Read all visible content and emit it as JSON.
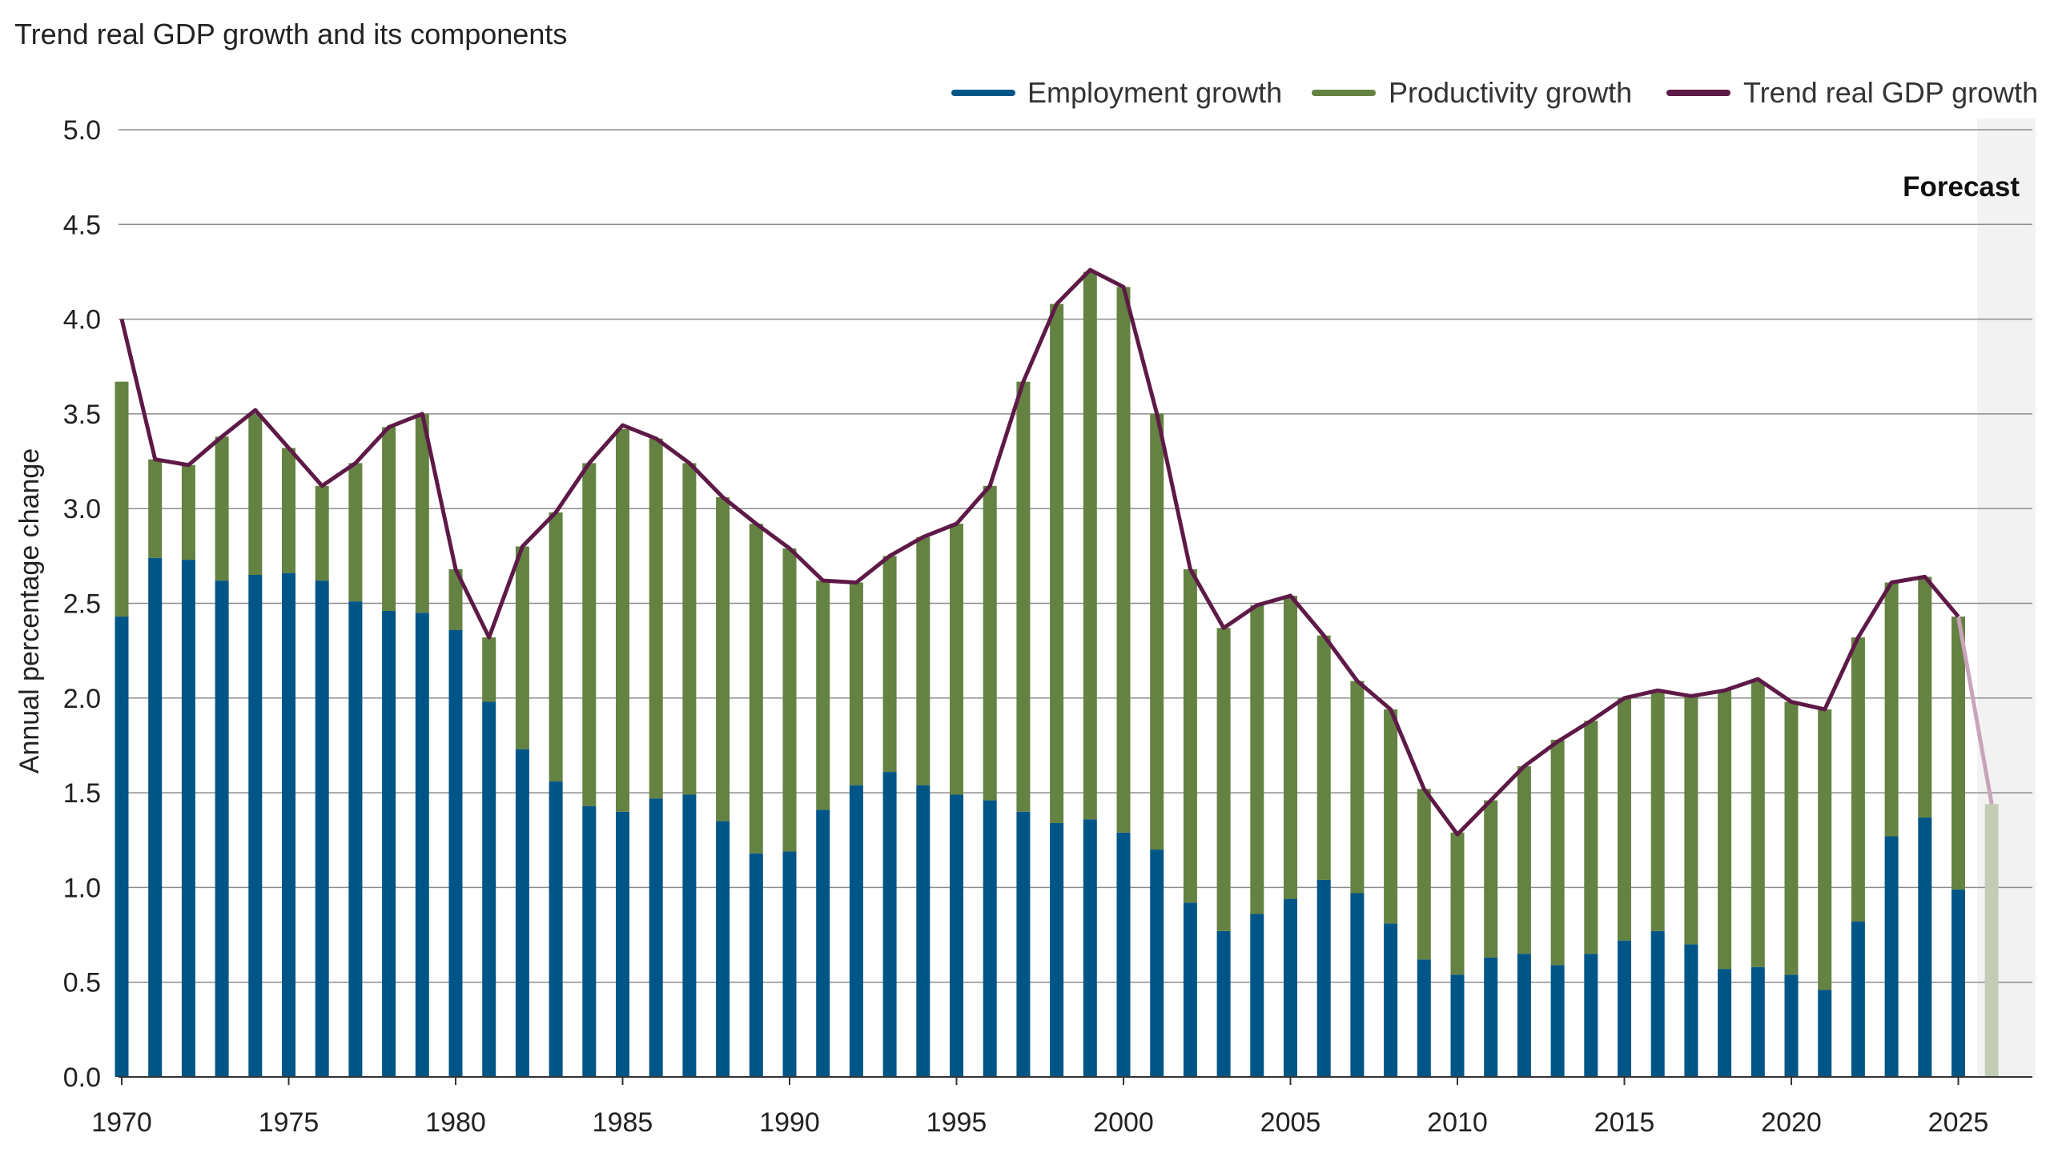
{
  "chart_data": {
    "type": "bar",
    "title": "Trend real GDP growth and its components",
    "xlabel": "",
    "ylabel": "Annual percentage change",
    "ylim": [
      0,
      5
    ],
    "yticks": [
      "0.0",
      "0.5",
      "1.0",
      "1.5",
      "2.0",
      "2.5",
      "3.0",
      "3.5",
      "4.0",
      "4.5",
      "5.0"
    ],
    "xticks": [
      "1970",
      "1975",
      "1980",
      "1985",
      "1990",
      "1995",
      "2000",
      "2005",
      "2010",
      "2015",
      "2020",
      "2025"
    ],
    "grid": true,
    "legend_position": "top-right",
    "stacked": true,
    "forecast_label": "Forecast",
    "forecast_from": 2026,
    "colors": {
      "employment": "#005587",
      "productivity": "#648241",
      "trend": "#5e1a47",
      "forecast_bar": "#c2cbb4",
      "forecast_line": "#c9a3bb",
      "forecast_shade": "#f2f2f2"
    },
    "x": [
      1970,
      1971,
      1972,
      1973,
      1974,
      1975,
      1976,
      1977,
      1978,
      1979,
      1980,
      1981,
      1982,
      1983,
      1984,
      1985,
      1986,
      1987,
      1988,
      1989,
      1990,
      1991,
      1992,
      1993,
      1994,
      1995,
      1996,
      1997,
      1998,
      1999,
      2000,
      2001,
      2002,
      2003,
      2004,
      2005,
      2006,
      2007,
      2008,
      2009,
      2010,
      2011,
      2012,
      2013,
      2014,
      2015,
      2016,
      2017,
      2018,
      2019,
      2020,
      2021,
      2022,
      2023,
      2024,
      2025,
      2026
    ],
    "series": [
      {
        "name": "Employment growth",
        "kind": "bar",
        "values": [
          2.43,
          2.74,
          2.73,
          2.62,
          2.65,
          2.66,
          2.62,
          2.51,
          2.46,
          2.45,
          2.36,
          1.98,
          1.73,
          1.56,
          1.43,
          1.4,
          1.47,
          1.49,
          1.35,
          1.18,
          1.19,
          1.41,
          1.54,
          1.61,
          1.54,
          1.49,
          1.46,
          1.4,
          1.34,
          1.36,
          1.29,
          1.2,
          0.92,
          0.77,
          0.86,
          0.94,
          1.04,
          0.97,
          0.81,
          0.62,
          0.54,
          0.63,
          0.65,
          0.59,
          0.65,
          0.72,
          0.77,
          0.7,
          0.57,
          0.58,
          0.54,
          0.46,
          0.82,
          1.27,
          1.37,
          0.99,
          null
        ]
      },
      {
        "name": "Productivity growth",
        "kind": "bar",
        "values": [
          1.24,
          0.52,
          0.5,
          0.76,
          0.85,
          0.66,
          0.5,
          0.73,
          0.97,
          1.05,
          0.32,
          0.34,
          1.07,
          1.42,
          1.81,
          2.02,
          1.9,
          1.75,
          1.71,
          1.74,
          1.6,
          1.21,
          1.07,
          1.14,
          1.31,
          1.43,
          1.66,
          2.27,
          2.74,
          2.89,
          2.88,
          2.3,
          1.76,
          1.6,
          1.63,
          1.6,
          1.29,
          1.12,
          1.13,
          0.9,
          0.75,
          0.83,
          0.99,
          1.19,
          1.23,
          1.28,
          1.27,
          1.31,
          1.47,
          1.51,
          1.44,
          1.48,
          1.5,
          1.34,
          1.27,
          1.44,
          1.44
        ]
      },
      {
        "name": "Trend real GDP growth",
        "kind": "line",
        "values": [
          4.0,
          3.26,
          3.23,
          3.38,
          3.52,
          3.32,
          3.12,
          3.24,
          3.43,
          3.5,
          2.68,
          2.32,
          2.8,
          2.98,
          3.24,
          3.44,
          3.37,
          3.24,
          3.06,
          2.92,
          2.79,
          2.62,
          2.61,
          2.75,
          2.85,
          2.92,
          3.12,
          3.67,
          4.08,
          4.26,
          4.17,
          3.5,
          2.68,
          2.37,
          2.49,
          2.54,
          2.33,
          2.09,
          1.94,
          1.52,
          1.28,
          1.46,
          1.64,
          1.77,
          1.88,
          2.0,
          2.04,
          2.01,
          2.04,
          2.1,
          1.98,
          1.94,
          2.32,
          2.61,
          2.64,
          2.43,
          1.44
        ]
      }
    ]
  }
}
